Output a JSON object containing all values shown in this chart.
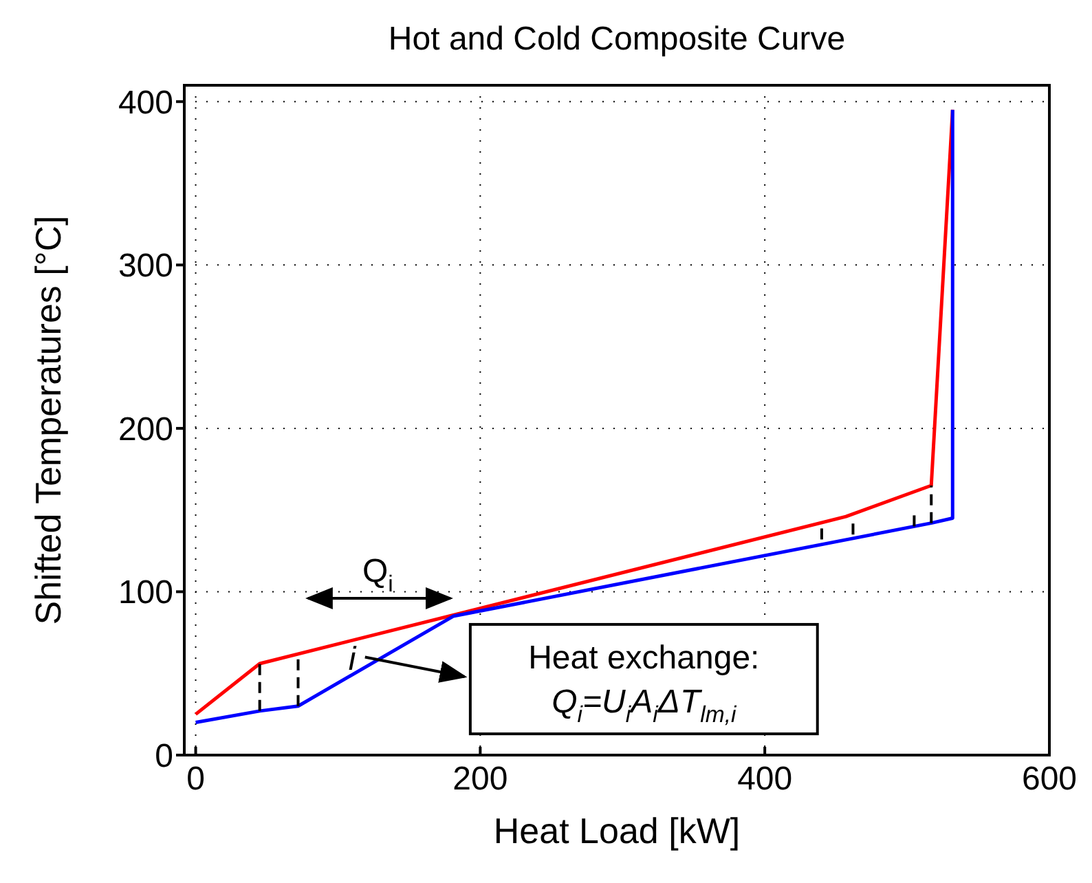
{
  "chart_data": {
    "type": "line",
    "title": "Hot and Cold Composite Curve",
    "xlabel": "Heat Load [kW]",
    "ylabel": "Shifted Temperatures [°C]",
    "series": [
      {
        "color": "#ff0000",
        "x": [
          0,
          45,
          457,
          517,
          532
        ],
        "values": [
          25,
          56,
          146,
          165,
          395
        ]
      },
      {
        "color": "#0000ff",
        "x": [
          0,
          45,
          72,
          181,
          517,
          532,
          532
        ],
        "values": [
          20,
          27,
          30,
          85,
          142,
          145,
          395
        ]
      }
    ],
    "xlim": [
      -8,
      600
    ],
    "xticks": [
      0,
      200,
      400,
      600
    ],
    "ylim": [
      0,
      410
    ],
    "yticks": [
      0,
      100,
      200,
      300,
      400
    ],
    "grid": true,
    "marker": "none",
    "line_style": "solid",
    "annotations": [
      "Q$_{i}$",
      "i",
      "Heat exchange:",
      "Q$_{i}$=U$_{i}$A$_{i}$ΔT$_{lm,i}$"
    ]
  }
}
